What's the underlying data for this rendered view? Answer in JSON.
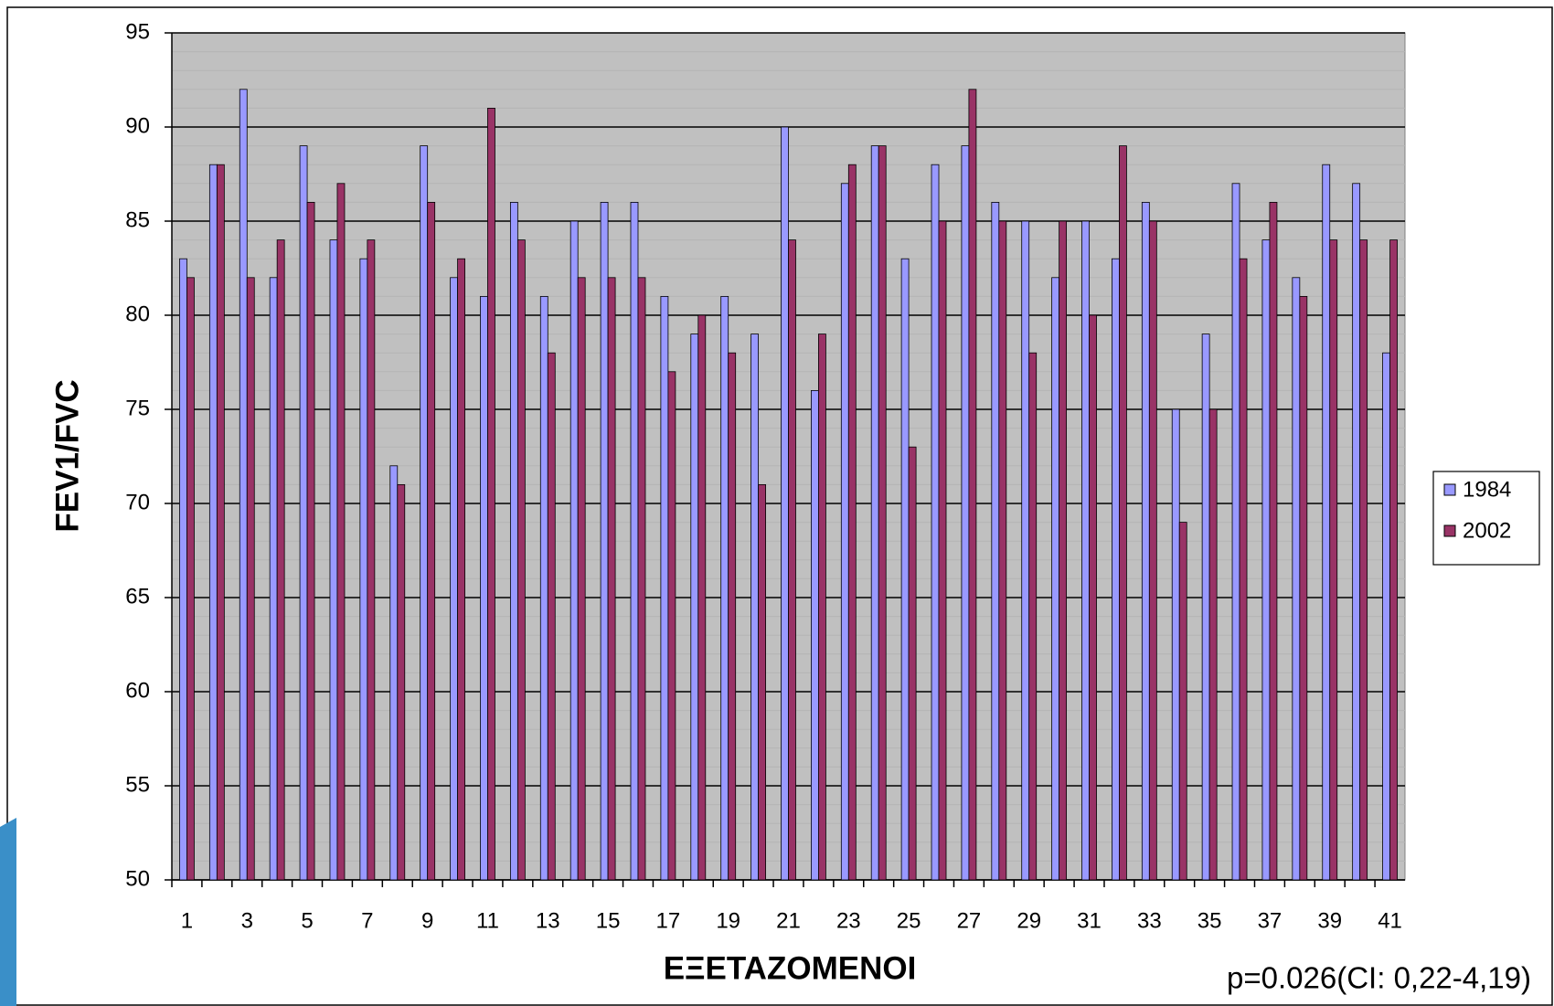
{
  "chart_data": {
    "type": "bar",
    "x_label": "ΕΞΕΤΑΖΟΜΕΝΟΙ",
    "y_label": "FEV1/FVC",
    "annotation": "p=0.026(CI: 0,22-4,19)",
    "categories": [
      "1",
      null,
      "3",
      null,
      "5",
      null,
      "7",
      null,
      "9",
      null,
      "11",
      null,
      "13",
      null,
      "15",
      null,
      "17",
      null,
      "19",
      null,
      "21",
      null,
      "23",
      null,
      "25",
      null,
      "27",
      null,
      "29",
      null,
      "31",
      null,
      "33",
      null,
      "35",
      null,
      "37",
      null,
      "39",
      null,
      "41"
    ],
    "series": [
      {
        "name": "1984",
        "color": "#9999ff",
        "values": [
          83,
          88,
          92,
          82,
          89,
          84,
          83,
          72,
          89,
          82,
          81,
          86,
          81,
          85,
          86,
          86,
          81,
          79,
          81,
          79,
          90,
          76,
          87,
          89,
          83,
          88,
          89,
          86,
          85,
          82,
          85,
          83,
          86,
          75,
          79,
          87,
          84,
          82,
          88,
          87,
          78
        ]
      },
      {
        "name": "2002",
        "color": "#993366",
        "values": [
          82,
          88,
          82,
          84,
          86,
          87,
          84,
          71,
          86,
          83,
          91,
          84,
          78,
          82,
          82,
          82,
          77,
          80,
          78,
          71,
          84,
          79,
          88,
          89,
          73,
          85,
          92,
          85,
          78,
          85,
          80,
          89,
          85,
          69,
          75,
          83,
          86,
          81,
          84,
          84,
          84
        ]
      }
    ],
    "ylim": [
      50,
      95
    ],
    "yticks": [
      50,
      55,
      60,
      65,
      70,
      75,
      80,
      85,
      90,
      95
    ],
    "grid": true,
    "plot_background": "#c0c0c0",
    "legend": "right"
  }
}
